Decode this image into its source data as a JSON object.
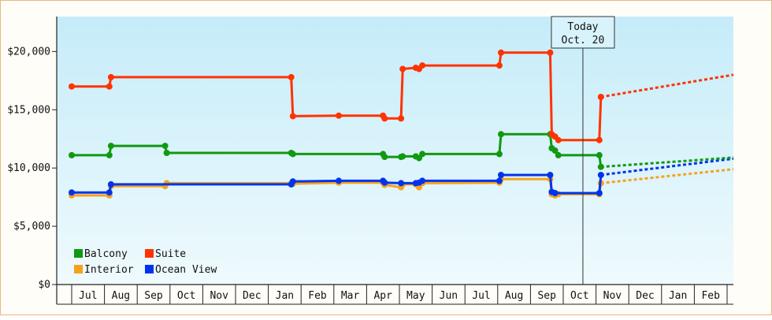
{
  "chart_data": {
    "type": "line",
    "title": "",
    "xlabel": "",
    "ylabel": "",
    "ylim": [
      0,
      23000
    ],
    "y_ticks": [
      "$0",
      "$5,000",
      "$10,000",
      "$15,000",
      "$20,000"
    ],
    "y_tick_values": [
      0,
      5000,
      10000,
      15000,
      20000
    ],
    "months": [
      "Jul",
      "Aug",
      "Sep",
      "Oct",
      "Nov",
      "Dec",
      "Jan",
      "Feb",
      "Mar",
      "Apr",
      "May",
      "Jun",
      "Jul",
      "Aug",
      "Sep",
      "Oct",
      "Nov",
      "Dec",
      "Jan",
      "Feb"
    ],
    "today_marker": {
      "line1": "Today",
      "line2": "Oct. 20",
      "x": 15.6
    },
    "grid": false,
    "legend_position": "bottom-left",
    "background_gradient": [
      "#c5ecf9",
      "#effafd"
    ],
    "series": [
      {
        "name": "Suite",
        "color": "#ff3300",
        "points": [
          [
            0.0,
            17000
          ],
          [
            1.15,
            17000
          ],
          [
            1.2,
            17800
          ],
          [
            6.7,
            17800
          ],
          [
            6.75,
            14450
          ],
          [
            8.15,
            14500
          ],
          [
            9.5,
            14500
          ],
          [
            9.55,
            14250
          ],
          [
            10.05,
            14250
          ],
          [
            10.1,
            18500
          ],
          [
            10.5,
            18600
          ],
          [
            10.6,
            18500
          ],
          [
            10.7,
            18800
          ],
          [
            13.05,
            18800
          ],
          [
            13.1,
            19900
          ],
          [
            14.6,
            19900
          ],
          [
            14.65,
            12900
          ],
          [
            14.75,
            12700
          ],
          [
            14.85,
            12400
          ],
          [
            16.1,
            12400
          ],
          [
            16.15,
            16100
          ]
        ],
        "forecast": [
          [
            16.15,
            16100
          ],
          [
            21.3,
            18000
          ]
        ]
      },
      {
        "name": "Balcony",
        "color": "#119911",
        "points": [
          [
            0.0,
            11100
          ],
          [
            1.15,
            11100
          ],
          [
            1.2,
            11900
          ],
          [
            2.85,
            11900
          ],
          [
            2.9,
            11300
          ],
          [
            6.7,
            11300
          ],
          [
            6.75,
            11200
          ],
          [
            8.15,
            11200
          ],
          [
            9.5,
            11200
          ],
          [
            9.55,
            10950
          ],
          [
            10.05,
            10950
          ],
          [
            10.1,
            11000
          ],
          [
            10.5,
            11000
          ],
          [
            10.6,
            10850
          ],
          [
            10.7,
            11200
          ],
          [
            13.05,
            11200
          ],
          [
            13.1,
            12900
          ],
          [
            14.6,
            12900
          ],
          [
            14.65,
            11700
          ],
          [
            14.75,
            11500
          ],
          [
            14.85,
            11100
          ],
          [
            16.1,
            11100
          ],
          [
            16.15,
            10100
          ]
        ],
        "forecast": [
          [
            16.15,
            10100
          ],
          [
            21.3,
            10900
          ]
        ]
      },
      {
        "name": "Ocean View",
        "color": "#0033ee",
        "points": [
          [
            0.0,
            7900
          ],
          [
            1.15,
            7900
          ],
          [
            1.2,
            8600
          ],
          [
            2.85,
            8600
          ],
          [
            6.7,
            8600
          ],
          [
            6.75,
            8850
          ],
          [
            8.15,
            8900
          ],
          [
            9.5,
            8900
          ],
          [
            9.55,
            8750
          ],
          [
            10.05,
            8700
          ],
          [
            10.1,
            8700
          ],
          [
            10.5,
            8700
          ],
          [
            10.6,
            8750
          ],
          [
            10.7,
            8900
          ],
          [
            13.05,
            8900
          ],
          [
            13.1,
            9400
          ],
          [
            14.6,
            9400
          ],
          [
            14.65,
            7950
          ],
          [
            14.75,
            7850
          ],
          [
            14.85,
            7850
          ],
          [
            16.1,
            7850
          ],
          [
            16.15,
            9400
          ]
        ],
        "forecast": [
          [
            16.15,
            9400
          ],
          [
            21.3,
            10800
          ]
        ]
      },
      {
        "name": "Interior",
        "color": "#f5a31c",
        "points": [
          [
            0.0,
            7650
          ],
          [
            1.15,
            7650
          ],
          [
            1.2,
            8450
          ],
          [
            2.85,
            8450
          ],
          [
            2.9,
            8700
          ],
          [
            6.7,
            8700
          ],
          [
            6.75,
            8650
          ],
          [
            8.15,
            8750
          ],
          [
            9.5,
            8750
          ],
          [
            9.55,
            8550
          ],
          [
            10.05,
            8350
          ],
          [
            10.1,
            8600
          ],
          [
            10.5,
            8600
          ],
          [
            10.6,
            8350
          ],
          [
            10.7,
            8700
          ],
          [
            13.05,
            8750
          ],
          [
            13.1,
            9050
          ],
          [
            14.6,
            9050
          ],
          [
            14.65,
            7750
          ],
          [
            14.75,
            7650
          ],
          [
            14.85,
            7750
          ],
          [
            16.1,
            7750
          ],
          [
            16.15,
            8700
          ]
        ],
        "forecast": [
          [
            16.15,
            8700
          ],
          [
            21.3,
            9900
          ]
        ]
      }
    ],
    "legend": [
      {
        "name": "Balcony",
        "color": "#119911",
        "row": 0,
        "col": 0
      },
      {
        "name": "Suite",
        "color": "#ff3300",
        "row": 0,
        "col": 1
      },
      {
        "name": "Interior",
        "color": "#f5a31c",
        "row": 1,
        "col": 0
      },
      {
        "name": "Ocean View",
        "color": "#0033ee",
        "row": 1,
        "col": 1
      }
    ]
  }
}
